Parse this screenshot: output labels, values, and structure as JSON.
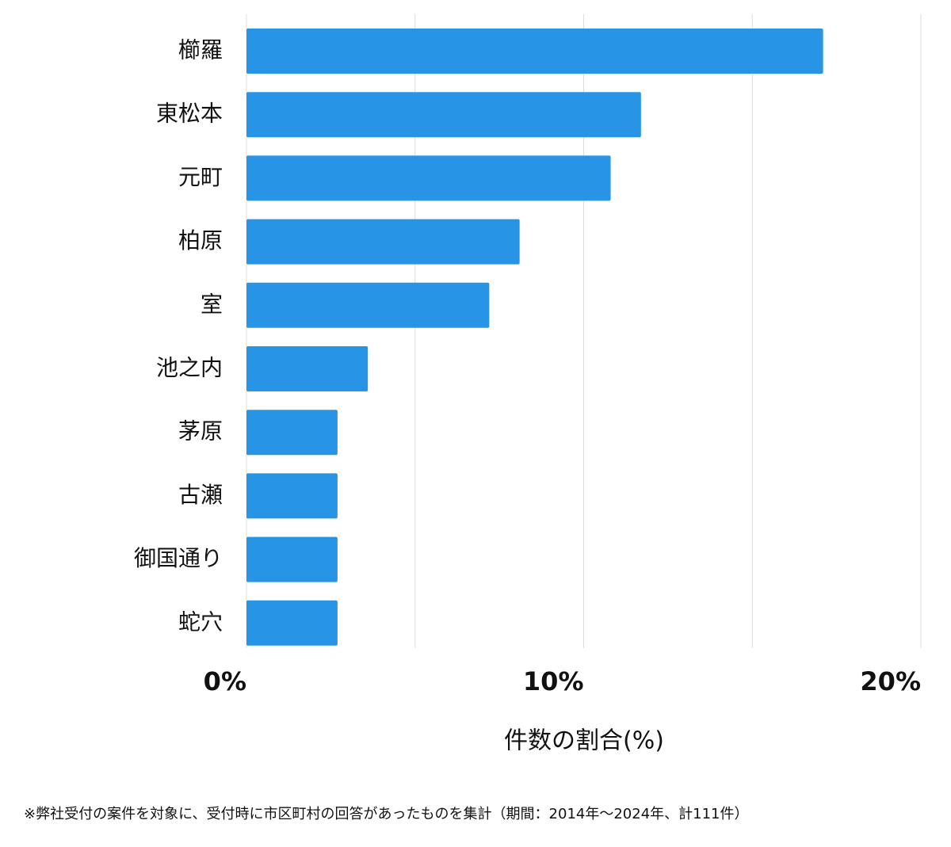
{
  "chart_data": {
    "type": "bar",
    "orientation": "horizontal",
    "categories": [
      "櫛羅",
      "東松本",
      "元町",
      "柏原",
      "室",
      "池之内",
      "茅原",
      "古瀬",
      "御国通り",
      "蛇穴"
    ],
    "values": [
      17.1,
      11.7,
      10.8,
      8.1,
      7.2,
      3.6,
      2.7,
      2.7,
      2.7,
      2.7
    ],
    "color": "#2794e6",
    "xlim": [
      0,
      20
    ],
    "xticks": [
      {
        "value": 0,
        "label": "0%"
      },
      {
        "value": 10,
        "label": "10%"
      },
      {
        "value": 20,
        "label": "20%"
      }
    ],
    "grid_values": [
      0,
      5,
      10,
      15,
      20
    ],
    "grid": true,
    "xlabel": "件数の割合(%)",
    "footnote": "※弊社受付の案件を対象に、受付時に市区町村の回答があったものを集計（期間：2014年～2024年、計111件）"
  }
}
